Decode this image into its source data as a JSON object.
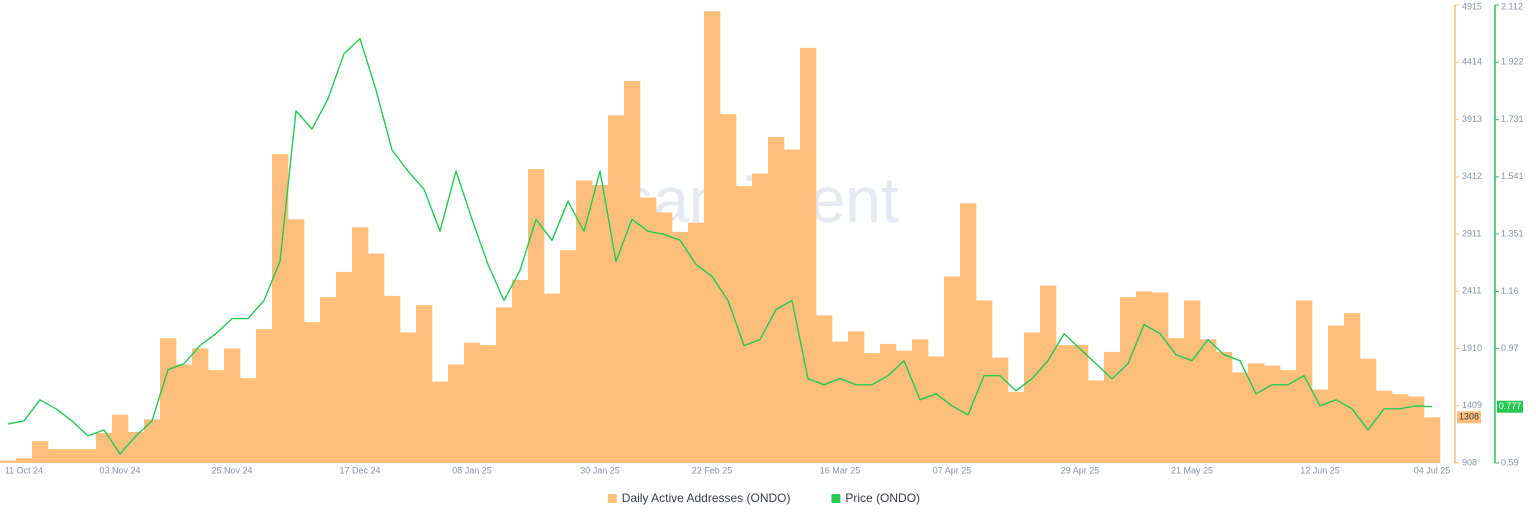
{
  "chart_data": {
    "type": "bar-line",
    "watermark": "santiment",
    "categories": [
      null,
      "11 Oct 24",
      null,
      null,
      null,
      null,
      null,
      "03 Nov 24",
      null,
      null,
      null,
      null,
      null,
      null,
      "25 Nov 24",
      null,
      null,
      null,
      null,
      null,
      null,
      null,
      "17 Dec 24",
      null,
      null,
      null,
      null,
      null,
      null,
      "08 Jan 25",
      null,
      null,
      null,
      null,
      null,
      null,
      null,
      "30 Jan 25",
      null,
      null,
      null,
      null,
      null,
      null,
      "22 Feb 25",
      null,
      null,
      null,
      null,
      null,
      null,
      null,
      "16 Mar 25",
      null,
      null,
      null,
      null,
      null,
      null,
      "07 Apr 25",
      null,
      null,
      null,
      null,
      null,
      null,
      null,
      "29 Apr 25",
      null,
      null,
      null,
      null,
      null,
      null,
      "21 May 25",
      null,
      null,
      null,
      null,
      null,
      null,
      null,
      "12 Jun 25",
      null,
      null,
      null,
      null,
      null,
      null,
      "04 Jul 25"
    ],
    "series": [
      {
        "name": "Daily Active Addresses (ONDO)",
        "color": "#fdbf7b",
        "kind": "bar",
        "values": [
          930,
          950,
          1100,
          1030,
          1030,
          1030,
          1170,
          1330,
          1180,
          1290,
          2000,
          1770,
          1910,
          1720,
          1910,
          1650,
          2080,
          3610,
          3040,
          2140,
          2360,
          2580,
          2970,
          2740,
          2370,
          2050,
          2290,
          1620,
          1770,
          1960,
          1940,
          2270,
          2510,
          3480,
          2390,
          2770,
          3380,
          3340,
          3950,
          4250,
          3230,
          3100,
          2930,
          3010,
          4860,
          3960,
          3330,
          3440,
          3760,
          3650,
          4540,
          2200,
          1970,
          2060,
          1870,
          1950,
          1890,
          1990,
          1840,
          2540,
          3180,
          2330,
          1830,
          1530,
          2050,
          2460,
          1940,
          1940,
          1630,
          1880,
          2360,
          2410,
          2400,
          2000,
          2330,
          1990,
          1880,
          1700,
          1780,
          1760,
          1720,
          2330,
          1550,
          2110,
          2220,
          1820,
          1540,
          1510,
          1490,
          1308
        ]
      },
      {
        "name": "Price (ONDO)",
        "color": "#26c953",
        "kind": "line",
        "axis": "y2",
        "values": [
          0.72,
          0.73,
          0.8,
          0.77,
          0.73,
          0.68,
          0.7,
          0.62,
          0.68,
          0.73,
          0.9,
          0.92,
          0.98,
          1.02,
          1.07,
          1.07,
          1.13,
          1.26,
          1.76,
          1.7,
          1.8,
          1.95,
          2.0,
          1.83,
          1.63,
          1.56,
          1.5,
          1.36,
          1.56,
          1.4,
          1.25,
          1.13,
          1.23,
          1.4,
          1.33,
          1.46,
          1.36,
          1.56,
          1.26,
          1.4,
          1.36,
          1.35,
          1.33,
          1.25,
          1.21,
          1.13,
          0.98,
          1.0,
          1.1,
          1.13,
          0.87,
          0.85,
          0.87,
          0.85,
          0.85,
          0.88,
          0.93,
          0.8,
          0.82,
          0.78,
          0.75,
          0.88,
          0.88,
          0.83,
          0.87,
          0.93,
          1.02,
          0.97,
          0.92,
          0.87,
          0.92,
          1.05,
          1.02,
          0.95,
          0.93,
          1.0,
          0.95,
          0.93,
          0.82,
          0.85,
          0.85,
          0.88,
          0.78,
          0.8,
          0.77,
          0.7,
          0.77,
          0.77,
          0.78,
          0.777
        ]
      }
    ],
    "ylim": [
      908,
      4915
    ],
    "yticks": [
      908,
      1409,
      1910,
      2411,
      2911,
      3412,
      3913,
      4414,
      4915
    ],
    "y2lim": [
      0.59,
      2.112
    ],
    "y2ticks": [
      0.59,
      0.97,
      1.16,
      1.351,
      1.541,
      1.731,
      1.922,
      2.112
    ],
    "legend": "bottom"
  }
}
